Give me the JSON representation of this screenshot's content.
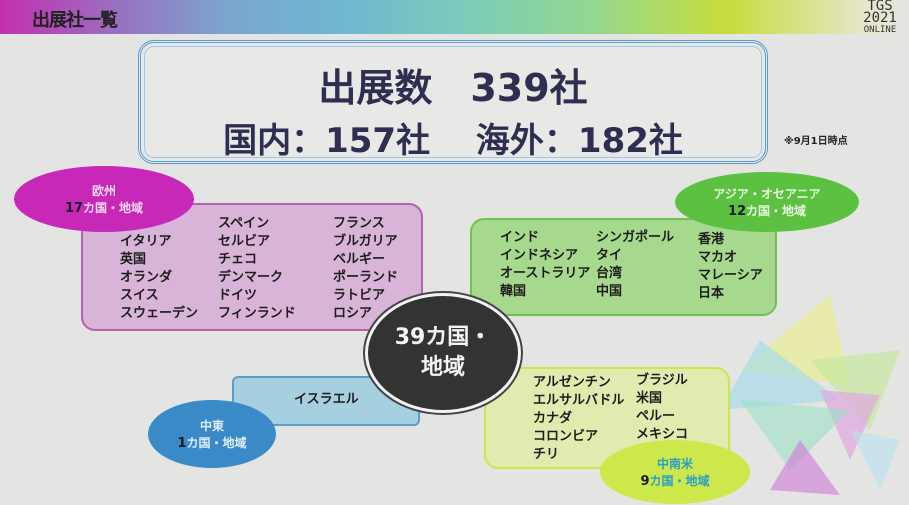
{
  "header": {
    "title": "出展社一覧",
    "logo": {
      "line1": "TGS",
      "line2": "2021",
      "line3": "ONLINE"
    }
  },
  "summary": {
    "total": "出展数　339社",
    "breakdown": "国内：157社　 海外：182社",
    "note": "※9月1日時点"
  },
  "center": {
    "line1": "39カ国・",
    "line2": "地域"
  },
  "regions": {
    "europe": {
      "name": "欧州",
      "count": "17",
      "unit": "カ国・地域",
      "columns": [
        [
          "イタリア",
          "英国",
          "オランダ",
          "スイス",
          "スウェーデン"
        ],
        [
          "スペイン",
          "セルビア",
          "チェコ",
          "デンマーク",
          "ドイツ",
          "フィンランド"
        ],
        [
          "フランス",
          "ブルガリア",
          "ベルギー",
          "ポーランド",
          "ラトビア",
          "ロシア"
        ]
      ]
    },
    "asia": {
      "name": "アジア・オセアニア",
      "count": "12",
      "unit": "カ国・地域",
      "columns": [
        [
          "インド",
          "インドネシア",
          "オーストラリア",
          "韓国"
        ],
        [
          "シンガポール",
          "タイ",
          "台湾",
          "中国"
        ],
        [
          "香港",
          "マカオ",
          "マレーシア",
          "日本"
        ]
      ]
    },
    "middle_east": {
      "name": "中東",
      "count": "1",
      "unit": "カ国・地域",
      "columns": [
        [
          "イスラエル"
        ]
      ]
    },
    "latin_america": {
      "name": "中南米",
      "count": "9",
      "unit": "カ国・地域",
      "columns": [
        [
          "アルゼンチン",
          "エルサルバドル",
          "カナダ",
          "コロンビア",
          "チリ"
        ],
        [
          "ブラジル",
          "米国",
          "ペルー",
          "メキシコ"
        ]
      ]
    }
  },
  "colors": {
    "europe": "#c828b8",
    "asia": "#5cc040",
    "middle_east": "#3a8ac8",
    "latin_america": "#cde84a",
    "center": "#333333"
  }
}
